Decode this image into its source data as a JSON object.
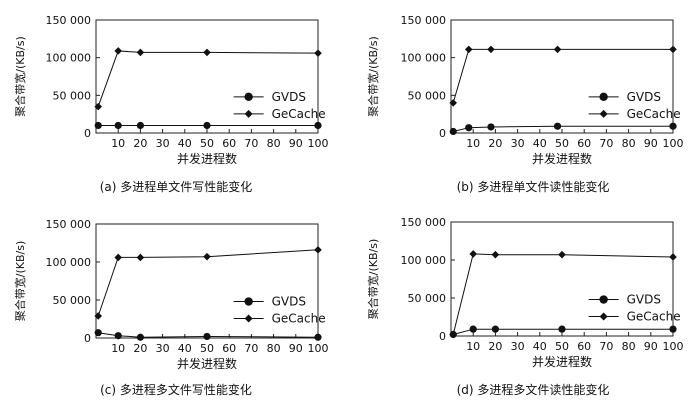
{
  "chart_data": [
    {
      "type": "line",
      "caption": "(a)  多进程单文件写性能变化",
      "xlabel": "并发进程数",
      "ylabel": "聚合带宽/(KB/s)",
      "xlim": [
        0,
        100
      ],
      "ylim": [
        0,
        150000
      ],
      "xticks": [
        "10",
        "20",
        "30",
        "40",
        "50",
        "60",
        "70",
        "80",
        "90",
        "100"
      ],
      "yticks": [
        "0",
        "50 000",
        "100 000",
        "150 000"
      ],
      "legend_position": "center-right",
      "series": [
        {
          "name": "GVDS",
          "marker": "circle",
          "x": [
            1,
            10,
            20,
            50,
            100
          ],
          "y": [
            10000,
            10000,
            10000,
            10000,
            10000
          ]
        },
        {
          "name": "GeCache",
          "marker": "diamond",
          "x": [
            1,
            10,
            20,
            50,
            100
          ],
          "y": [
            35000,
            109000,
            107000,
            107000,
            106000
          ]
        }
      ]
    },
    {
      "type": "line",
      "caption": "(b)  多进程单文件读性能变化",
      "xlabel": "并发进程数",
      "ylabel": "聚合带宽/(KB/s)",
      "xlim": [
        0,
        100
      ],
      "ylim": [
        0,
        150000
      ],
      "xticks": [
        "10",
        "20",
        "30",
        "40",
        "50",
        "60",
        "70",
        "80",
        "90",
        "100"
      ],
      "yticks": [
        "0",
        "50 000",
        "100 000",
        "150 000"
      ],
      "legend_position": "center-right",
      "series": [
        {
          "name": "GVDS",
          "marker": "circle",
          "x": [
            1,
            8,
            18,
            48,
            100
          ],
          "y": [
            2000,
            7000,
            8000,
            9000,
            9000
          ]
        },
        {
          "name": "GeCache",
          "marker": "diamond",
          "x": [
            1,
            8,
            18,
            48,
            100
          ],
          "y": [
            40000,
            111000,
            111000,
            111000,
            111000
          ]
        }
      ]
    },
    {
      "type": "line",
      "caption": "(c)  多进程多文件写性能变化",
      "xlabel": "并发进程数",
      "ylabel": "聚合带宽/(KB/s)",
      "xlim": [
        0,
        100
      ],
      "ylim": [
        0,
        150000
      ],
      "xticks": [
        "10",
        "20",
        "30",
        "40",
        "50",
        "60",
        "70",
        "80",
        "90",
        "100"
      ],
      "yticks": [
        "0",
        "50 000",
        "100 000",
        "150 000"
      ],
      "legend_position": "center-right",
      "series": [
        {
          "name": "GVDS",
          "marker": "circle",
          "x": [
            1,
            10,
            20,
            50,
            100
          ],
          "y": [
            7000,
            3000,
            1000,
            2000,
            1000
          ]
        },
        {
          "name": "GeCache",
          "marker": "diamond",
          "x": [
            1,
            10,
            20,
            50,
            100
          ],
          "y": [
            29000,
            106000,
            106000,
            107000,
            116000
          ]
        }
      ]
    },
    {
      "type": "line",
      "caption": "(d)  多进程多文件读性能变化",
      "xlabel": "并发进程数",
      "ylabel": "聚合带宽/(KB/s)",
      "xlim": [
        0,
        100
      ],
      "ylim": [
        0,
        150000
      ],
      "xticks": [
        "10",
        "20",
        "30",
        "40",
        "50",
        "60",
        "70",
        "80",
        "90",
        "100"
      ],
      "yticks": [
        "0",
        "50 000",
        "100 000",
        "150 000"
      ],
      "legend_position": "center-right",
      "series": [
        {
          "name": "GVDS",
          "marker": "circle",
          "x": [
            1,
            10,
            20,
            50,
            100
          ],
          "y": [
            2000,
            9000,
            9000,
            9000,
            9000
          ]
        },
        {
          "name": "GeCache",
          "marker": "diamond",
          "x": [
            1,
            10,
            20,
            50,
            100
          ],
          "y": [
            2000,
            108000,
            107000,
            107000,
            104000
          ]
        }
      ]
    }
  ]
}
